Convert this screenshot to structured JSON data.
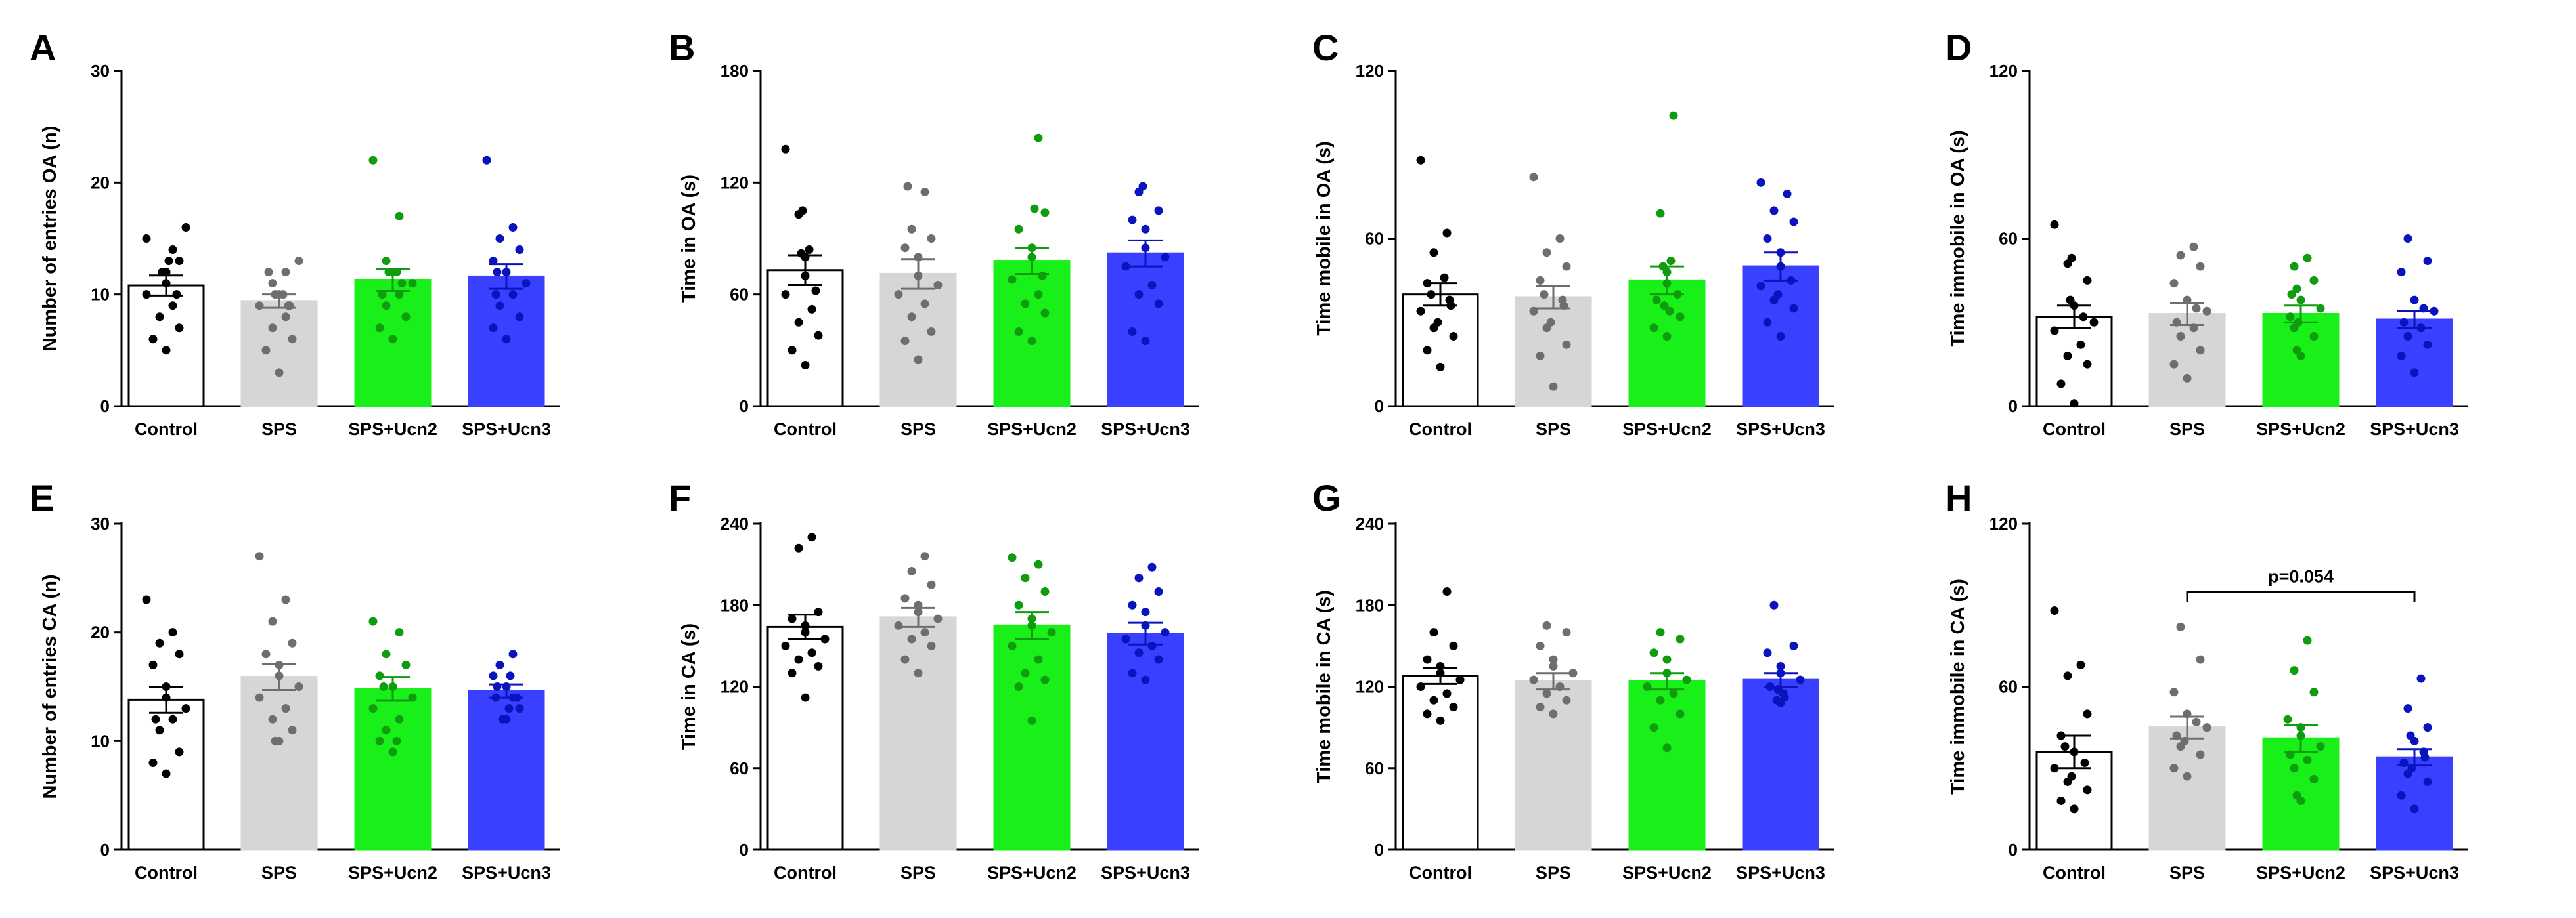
{
  "figure": {
    "groups": [
      "Control",
      "SPS",
      "SPS+Ucn2",
      "SPS+Ucn3"
    ],
    "colors": {
      "Control": {
        "bar": "#ffffff",
        "dot": "#000000"
      },
      "SPS": {
        "bar": "#d6d6d6",
        "dot": "#6e6e6e"
      },
      "SPS+Ucn2": {
        "bar": "#19ef19",
        "dot": "#0f9d0f"
      },
      "SPS+Ucn3": {
        "bar": "#3a40ff",
        "dot": "#0a14bd"
      }
    }
  },
  "chart_data": [
    {
      "letter": "A",
      "type": "bar",
      "ylabel": "Number of entries OA (n)",
      "categories": [
        "Control",
        "SPS",
        "SPS+Ucn2",
        "SPS+Ucn3"
      ],
      "ylim": [
        0,
        30
      ],
      "yticks": [
        0,
        10,
        20,
        30
      ],
      "ytick_labels": [
        "0",
        "10",
        "20",
        "30"
      ],
      "values": [
        10.8,
        9.4,
        11.3,
        11.6
      ],
      "sem": [
        0.9,
        0.6,
        1.0,
        1.1
      ],
      "points": [
        [
          16,
          15,
          14,
          13,
          13,
          12,
          12,
          11,
          10,
          10,
          9,
          8,
          7,
          6,
          5
        ],
        [
          13,
          12,
          12,
          11,
          10,
          10,
          10,
          9,
          9,
          9,
          8,
          7,
          6,
          5,
          3
        ],
        [
          22,
          17,
          13,
          12,
          12,
          12,
          11,
          11,
          10,
          10,
          9,
          8,
          7,
          6
        ],
        [
          22,
          16,
          15,
          14,
          13,
          12,
          12,
          11,
          10,
          10,
          9,
          8,
          7,
          6
        ]
      ]
    },
    {
      "letter": "B",
      "type": "bar",
      "ylabel": "Time in OA (s)",
      "categories": [
        "Control",
        "SPS",
        "SPS+Ucn2",
        "SPS+Ucn3"
      ],
      "ylim": [
        0,
        180
      ],
      "yticks": [
        0,
        60,
        120,
        180
      ],
      "ytick_labels": [
        "0",
        "60",
        "120",
        "180"
      ],
      "values": [
        73,
        71,
        78,
        82
      ],
      "sem": [
        8,
        8,
        7,
        7
      ],
      "points": [
        [
          138,
          105,
          103,
          84,
          82,
          80,
          70,
          62,
          60,
          52,
          45,
          38,
          30,
          22
        ],
        [
          118,
          115,
          95,
          90,
          85,
          80,
          70,
          65,
          60,
          55,
          48,
          40,
          35,
          25
        ],
        [
          144,
          106,
          104,
          95,
          85,
          80,
          70,
          68,
          60,
          55,
          50,
          40,
          35
        ],
        [
          118,
          115,
          105,
          100,
          95,
          85,
          80,
          75,
          65,
          60,
          55,
          40,
          35
        ]
      ]
    },
    {
      "letter": "C",
      "type": "bar",
      "ylabel": "Time mobile in OA (s)",
      "categories": [
        "Control",
        "SPS",
        "SPS+Ucn2",
        "SPS+Ucn3"
      ],
      "ylim": [
        0,
        120
      ],
      "yticks": [
        0,
        60,
        120
      ],
      "ytick_labels": [
        "0",
        "60",
        "120"
      ],
      "values": [
        40,
        39,
        45,
        50
      ],
      "sem": [
        4,
        4,
        5,
        5
      ],
      "points": [
        [
          88,
          62,
          55,
          46,
          44,
          40,
          38,
          36,
          34,
          30,
          28,
          25,
          20,
          14
        ],
        [
          82,
          60,
          55,
          50,
          45,
          40,
          38,
          36,
          34,
          30,
          28,
          22,
          18,
          7
        ],
        [
          104,
          69,
          52,
          50,
          48,
          44,
          40,
          38,
          36,
          34,
          32,
          28,
          25
        ],
        [
          80,
          76,
          70,
          66,
          60,
          55,
          50,
          45,
          43,
          40,
          38,
          35,
          30,
          25
        ]
      ]
    },
    {
      "letter": "D",
      "type": "bar",
      "ylabel": "Time immobile in OA (s)",
      "categories": [
        "Control",
        "SPS",
        "SPS+Ucn2",
        "SPS+Ucn3"
      ],
      "ylim": [
        0,
        120
      ],
      "yticks": [
        0,
        60,
        120
      ],
      "ytick_labels": [
        "0",
        "60",
        "120"
      ],
      "values": [
        32,
        33,
        33,
        31
      ],
      "sem": [
        4,
        4,
        3,
        3
      ],
      "points": [
        [
          65,
          53,
          51,
          45,
          38,
          36,
          32,
          30,
          27,
          22,
          18,
          15,
          8,
          1
        ],
        [
          57,
          54,
          50,
          44,
          38,
          35,
          34,
          30,
          28,
          25,
          20,
          15,
          10
        ],
        [
          53,
          50,
          45,
          42,
          40,
          38,
          35,
          32,
          30,
          28,
          25,
          20,
          18
        ],
        [
          60,
          52,
          48,
          38,
          35,
          34,
          30,
          28,
          25,
          22,
          18,
          12
        ]
      ]
    },
    {
      "letter": "E",
      "type": "bar",
      "ylabel": "Number of entries CA (n)",
      "categories": [
        "Control",
        "SPS",
        "SPS+Ucn2",
        "SPS+Ucn3"
      ],
      "ylim": [
        0,
        30
      ],
      "yticks": [
        0,
        10,
        20,
        30
      ],
      "ytick_labels": [
        "0",
        "10",
        "20",
        "30"
      ],
      "values": [
        13.8,
        15.9,
        14.8,
        14.6
      ],
      "sem": [
        1.2,
        1.2,
        1.1,
        0.6
      ],
      "points": [
        [
          23,
          20,
          19,
          18,
          17,
          15,
          14,
          13,
          12,
          12,
          11,
          9,
          8,
          7
        ],
        [
          27,
          23,
          21,
          19,
          18,
          17,
          16,
          15,
          14,
          13,
          12,
          11,
          10,
          10
        ],
        [
          21,
          20,
          18,
          17,
          16,
          15,
          15,
          14,
          13,
          12,
          11,
          10,
          10,
          9
        ],
        [
          18,
          17,
          16,
          16,
          15,
          15,
          14,
          14,
          14,
          13,
          13,
          12,
          12
        ]
      ]
    },
    {
      "letter": "F",
      "type": "bar",
      "ylabel": "Time in CA (s)",
      "categories": [
        "Control",
        "SPS",
        "SPS+Ucn2",
        "SPS+Ucn3"
      ],
      "ylim": [
        0,
        240
      ],
      "yticks": [
        0,
        60,
        120,
        180,
        240
      ],
      "ytick_labels": [
        "0",
        "60",
        "120",
        "180",
        "240"
      ],
      "values": [
        164,
        171,
        165,
        159
      ],
      "sem": [
        9,
        7,
        10,
        8
      ],
      "points": [
        [
          230,
          222,
          175,
          170,
          165,
          160,
          155,
          150,
          145,
          140,
          135,
          130,
          112
        ],
        [
          216,
          205,
          195,
          185,
          180,
          175,
          170,
          165,
          160,
          155,
          150,
          140,
          130
        ],
        [
          215,
          210,
          200,
          190,
          180,
          170,
          165,
          160,
          150,
          140,
          130,
          125,
          120,
          95
        ],
        [
          208,
          200,
          190,
          180,
          175,
          165,
          160,
          155,
          150,
          145,
          140,
          130,
          125
        ]
      ]
    },
    {
      "letter": "G",
      "type": "bar",
      "ylabel": "Time mobile in CA (s)",
      "categories": [
        "Control",
        "SPS",
        "SPS+Ucn2",
        "SPS+Ucn3"
      ],
      "ylim": [
        0,
        240
      ],
      "yticks": [
        0,
        60,
        120,
        180,
        240
      ],
      "ytick_labels": [
        "0",
        "60",
        "120",
        "180",
        "240"
      ],
      "values": [
        128,
        124,
        124,
        125
      ],
      "sem": [
        6,
        6,
        6,
        5
      ],
      "points": [
        [
          190,
          160,
          150,
          140,
          135,
          130,
          125,
          120,
          115,
          110,
          105,
          100,
          95
        ],
        [
          165,
          160,
          150,
          140,
          135,
          130,
          125,
          120,
          115,
          110,
          105,
          100
        ],
        [
          160,
          155,
          145,
          140,
          130,
          125,
          120,
          115,
          110,
          100,
          90,
          75
        ],
        [
          180,
          150,
          145,
          135,
          130,
          125,
          120,
          118,
          115,
          112,
          110,
          108
        ]
      ]
    },
    {
      "letter": "H",
      "type": "bar",
      "ylabel": "Time immobile in CA (s)",
      "categories": [
        "Control",
        "SPS",
        "SPS+Ucn2",
        "SPS+Ucn3"
      ],
      "ylim": [
        0,
        120
      ],
      "yticks": [
        0,
        60,
        120
      ],
      "ytick_labels": [
        "0",
        "60",
        "120"
      ],
      "values": [
        36,
        45,
        41,
        34
      ],
      "sem": [
        6,
        4,
        5,
        3
      ],
      "points": [
        [
          88,
          68,
          64,
          50,
          42,
          38,
          36,
          32,
          30,
          27,
          25,
          22,
          18,
          15
        ],
        [
          82,
          70,
          58,
          50,
          47,
          45,
          42,
          40,
          38,
          35,
          30,
          27
        ],
        [
          77,
          66,
          58,
          48,
          45,
          42,
          38,
          35,
          33,
          30,
          26,
          20,
          18
        ],
        [
          63,
          52,
          45,
          42,
          40,
          36,
          34,
          32,
          30,
          28,
          25,
          20,
          15
        ]
      ],
      "annotation": {
        "text": "p=0.054",
        "from": "SPS",
        "to": "SPS+Ucn3",
        "y": 95
      }
    }
  ]
}
